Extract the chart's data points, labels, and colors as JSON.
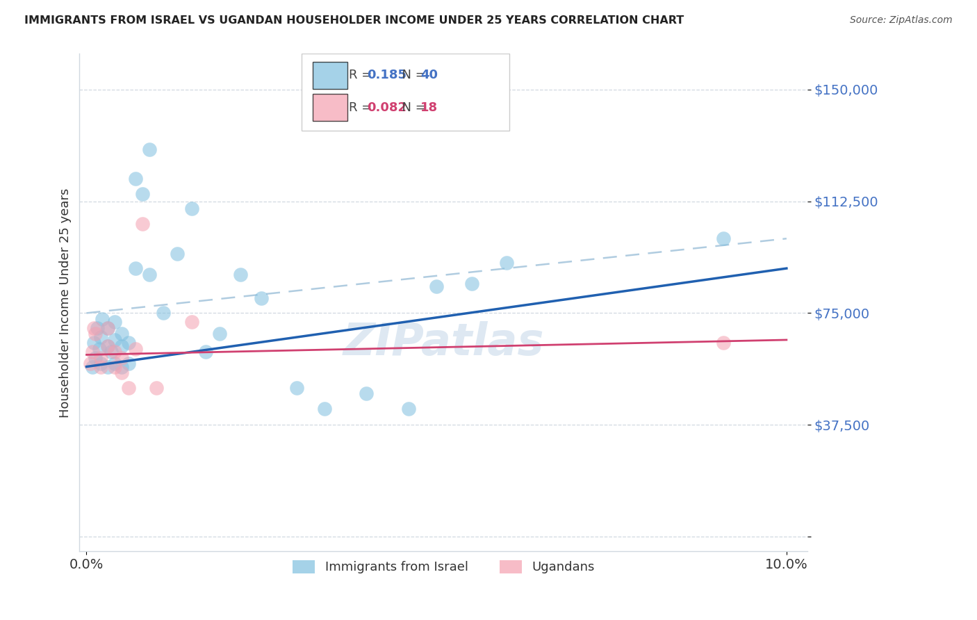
{
  "title": "IMMIGRANTS FROM ISRAEL VS UGANDAN HOUSEHOLDER INCOME UNDER 25 YEARS CORRELATION CHART",
  "source": "Source: ZipAtlas.com",
  "ylabel": "Householder Income Under 25 years",
  "xlim_min": -0.001,
  "xlim_max": 0.103,
  "ylim_min": -5000,
  "ylim_max": 162000,
  "yticks": [
    0,
    37500,
    75000,
    112500,
    150000
  ],
  "ytick_labels": [
    "",
    "$37,500",
    "$75,000",
    "$112,500",
    "$150,000"
  ],
  "xtick_labels": [
    "0.0%",
    "10.0%"
  ],
  "xtick_positions": [
    0.0,
    0.1
  ],
  "legend_label1": "Immigrants from Israel",
  "legend_label2": "Ugandans",
  "blue_dot_color": "#7fbfdf",
  "pink_dot_color": "#f4a0b0",
  "blue_line_color": "#2060b0",
  "pink_line_color": "#d04070",
  "dashed_line_color": "#b0cce0",
  "grid_color": "#d0d8e0",
  "watermark_color": "#c8daea",
  "title_color": "#222222",
  "source_color": "#555555",
  "ytick_color": "#4472c4",
  "israel_x": [
    0.0008,
    0.001,
    0.0012,
    0.0015,
    0.0018,
    0.002,
    0.002,
    0.0022,
    0.003,
    0.003,
    0.003,
    0.0035,
    0.004,
    0.004,
    0.004,
    0.005,
    0.005,
    0.005,
    0.006,
    0.006,
    0.007,
    0.007,
    0.008,
    0.009,
    0.009,
    0.011,
    0.013,
    0.015,
    0.017,
    0.019,
    0.022,
    0.025,
    0.03,
    0.034,
    0.04,
    0.046,
    0.05,
    0.055,
    0.06,
    0.091
  ],
  "israel_y": [
    57000,
    65000,
    60000,
    70000,
    63000,
    58000,
    67000,
    73000,
    57000,
    64000,
    70000,
    62000,
    58000,
    66000,
    72000,
    57000,
    64000,
    68000,
    58000,
    65000,
    120000,
    90000,
    115000,
    130000,
    88000,
    75000,
    95000,
    110000,
    62000,
    68000,
    88000,
    80000,
    50000,
    43000,
    48000,
    43000,
    84000,
    85000,
    92000,
    100000
  ],
  "uganda_x": [
    0.0005,
    0.0008,
    0.001,
    0.0012,
    0.002,
    0.002,
    0.003,
    0.003,
    0.004,
    0.004,
    0.005,
    0.005,
    0.006,
    0.007,
    0.008,
    0.01,
    0.015,
    0.091
  ],
  "uganda_y": [
    58000,
    62000,
    70000,
    68000,
    60000,
    57000,
    64000,
    70000,
    57000,
    62000,
    55000,
    60000,
    50000,
    63000,
    105000,
    50000,
    72000,
    65000
  ],
  "israel_line_x0": 0.0,
  "israel_line_y0": 57000,
  "israel_line_x1": 0.1,
  "israel_line_y1": 90000,
  "uganda_line_x0": 0.0,
  "uganda_line_y0": 61000,
  "uganda_line_x1": 0.1,
  "uganda_line_y1": 66000,
  "dash_line_x0": 0.0,
  "dash_line_y0": 75000,
  "dash_line_x1": 0.1,
  "dash_line_y1": 100000
}
